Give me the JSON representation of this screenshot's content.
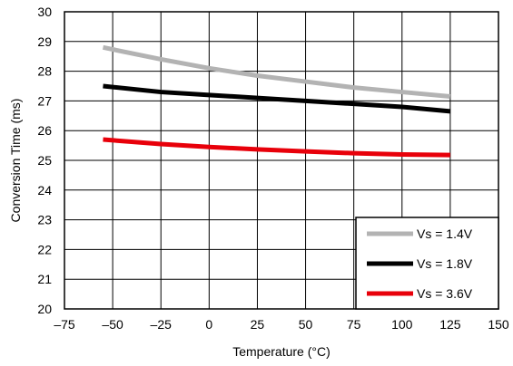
{
  "chart_data": {
    "type": "line",
    "title": "",
    "xlabel": "Temperature (°C)",
    "ylabel": "Conversion Time (ms)",
    "xlim": [
      -75,
      150
    ],
    "ylim": [
      20,
      30
    ],
    "xticks": [
      -75,
      -50,
      -25,
      0,
      25,
      50,
      75,
      100,
      125,
      150
    ],
    "xtick_labels": [
      "–75",
      "–50",
      "–25",
      "0",
      "25",
      "50",
      "75",
      "100",
      "125",
      "150"
    ],
    "yticks": [
      20,
      21,
      22,
      23,
      24,
      25,
      26,
      27,
      28,
      29,
      30
    ],
    "ytick_labels": [
      "20",
      "21",
      "22",
      "23",
      "24",
      "25",
      "26",
      "27",
      "28",
      "29",
      "30"
    ],
    "grid": true,
    "legend_position": "bottom-right",
    "series": [
      {
        "name": "Vs = 1.4V",
        "color": "#b3b3b3",
        "x": [
          -55,
          -25,
          0,
          25,
          50,
          75,
          100,
          125
        ],
        "y": [
          28.8,
          28.4,
          28.1,
          27.85,
          27.65,
          27.45,
          27.3,
          27.15
        ]
      },
      {
        "name": "Vs = 1.8V",
        "color": "#000000",
        "x": [
          -55,
          -25,
          0,
          25,
          50,
          75,
          100,
          125
        ],
        "y": [
          27.5,
          27.3,
          27.2,
          27.1,
          27.0,
          26.9,
          26.8,
          26.65
        ]
      },
      {
        "name": "Vs = 3.6V",
        "color": "#e8000a",
        "x": [
          -55,
          -25,
          0,
          25,
          50,
          75,
          100,
          125
        ],
        "y": [
          25.7,
          25.55,
          25.45,
          25.37,
          25.3,
          25.24,
          25.2,
          25.18
        ]
      }
    ]
  }
}
